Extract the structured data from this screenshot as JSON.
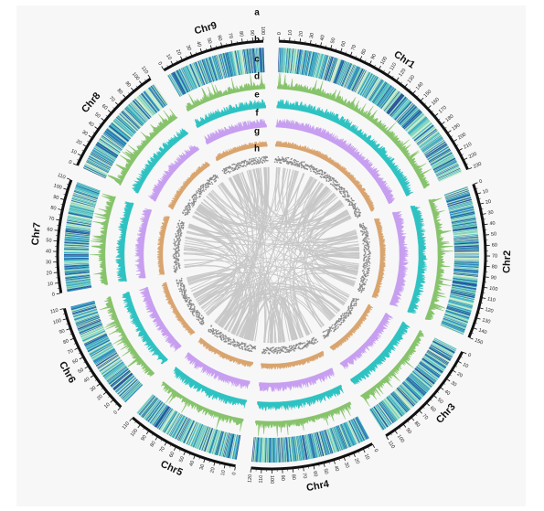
{
  "chart_data": {
    "type": "circos",
    "title": "",
    "chromosomes": [
      {
        "name": "Chr1",
        "length": 230,
        "tick_step": 10,
        "tick_labels": [
          "0",
          "10",
          "20",
          "30",
          "40",
          "50",
          "60",
          "70",
          "80",
          "90",
          "100",
          "110",
          "120",
          "130",
          "140",
          "150",
          "160",
          "170",
          "180",
          "190",
          "200",
          "210",
          "220",
          "230"
        ]
      },
      {
        "name": "Chr2",
        "length": 150,
        "tick_step": 10,
        "tick_labels": [
          "0",
          "10",
          "20",
          "30",
          "40",
          "50",
          "60",
          "70",
          "80",
          "90",
          "100",
          "110",
          "120",
          "130",
          "140",
          "150"
        ]
      },
      {
        "name": "Chr3",
        "length": 110,
        "tick_step": 10,
        "tick_labels": [
          "0",
          "10",
          "20",
          "30",
          "40",
          "50",
          "60",
          "70",
          "80",
          "90",
          "100",
          "110"
        ]
      },
      {
        "name": "Chr4",
        "length": 120,
        "tick_step": 10,
        "tick_labels": [
          "0",
          "10",
          "20",
          "30",
          "40",
          "50",
          "60",
          "70",
          "80",
          "90",
          "100",
          "110",
          "120"
        ]
      },
      {
        "name": "Chr5",
        "length": 110,
        "tick_step": 10,
        "tick_labels": [
          "0",
          "10",
          "20",
          "30",
          "40",
          "50",
          "60",
          "70",
          "80",
          "90",
          "100",
          "110"
        ]
      },
      {
        "name": "Chr6",
        "length": 110,
        "tick_step": 10,
        "tick_labels": [
          "0",
          "10",
          "20",
          "30",
          "40",
          "50",
          "60",
          "70",
          "80",
          "90",
          "100",
          "110"
        ]
      },
      {
        "name": "Chr7",
        "length": 110,
        "tick_step": 10,
        "tick_labels": [
          "0",
          "10",
          "20",
          "30",
          "40",
          "50",
          "60",
          "70",
          "80",
          "90",
          "100",
          "110"
        ]
      },
      {
        "name": "Chr8",
        "length": 110,
        "tick_step": 10,
        "tick_labels": [
          "0",
          "10",
          "20",
          "30",
          "40",
          "50",
          "60",
          "70",
          "80",
          "90",
          "100",
          "110"
        ]
      },
      {
        "name": "Chr9",
        "length": 100,
        "tick_step": 10,
        "tick_labels": [
          "0",
          "10",
          "20",
          "30",
          "40",
          "50",
          "60",
          "70",
          "80",
          "90",
          "100"
        ]
      }
    ],
    "tracks": [
      {
        "letter": "a",
        "kind": "ideogram-ticks"
      },
      {
        "letter": "b",
        "kind": "heatmap",
        "colors": [
          "#1f4e96",
          "#2a84be",
          "#3fb7c4",
          "#7fd4bd",
          "#cdeccb"
        ]
      },
      {
        "letter": "c",
        "kind": "histogram",
        "color": "#86c36b"
      },
      {
        "letter": "d",
        "kind": "histogram",
        "color": "#2ec2c2"
      },
      {
        "letter": "e",
        "kind": "histogram",
        "color": "#c79ef0"
      },
      {
        "letter": "f",
        "kind": "histogram",
        "color": "#d9a46e"
      },
      {
        "letter": "g",
        "kind": "scatter",
        "color": "#8a8a8a"
      },
      {
        "letter": "h",
        "kind": "links",
        "color": "#c7c7c7",
        "count": 190
      }
    ]
  }
}
